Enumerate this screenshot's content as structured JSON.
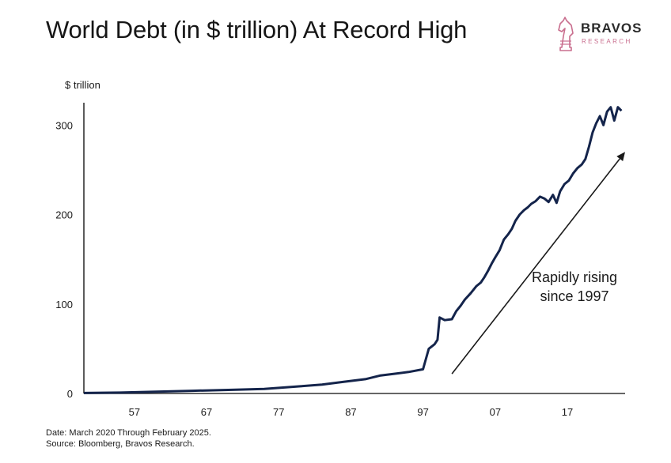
{
  "title": "World Debt (in $ trillion) At Record High",
  "brand": {
    "name": "BRAVOS",
    "sub": "RESEARCH",
    "icon": "chess-knight-icon",
    "color": "#c96e8e"
  },
  "notes": {
    "date": "Date: March 2020 Through February 2025.",
    "source": "Source: Bloomberg, Bravos Research."
  },
  "chart_data": {
    "type": "line",
    "ylabel": "$ trillion",
    "ylim": [
      0,
      325
    ],
    "xlim": [
      1950,
      2025
    ],
    "yticks": [
      0,
      100,
      200,
      300
    ],
    "xticks": [
      {
        "value": 1957,
        "label": "57"
      },
      {
        "value": 1967,
        "label": "67"
      },
      {
        "value": 1977,
        "label": "77"
      },
      {
        "value": 1987,
        "label": "87"
      },
      {
        "value": 1997,
        "label": "97"
      },
      {
        "value": 2007,
        "label": "07"
      },
      {
        "value": 2017,
        "label": "17"
      }
    ],
    "grid": false,
    "line_color": "#14244b",
    "series": [
      {
        "x": [
          1950,
          1955,
          1960,
          1965,
          1970,
          1975,
          1980,
          1983,
          1986,
          1989,
          1991,
          1993,
          1995,
          1997,
          1997.8,
          1998.6,
          1999,
          1999.3,
          2000,
          2001,
          2001.6,
          2002.2,
          2002.8,
          2003.6,
          2004.4,
          2005,
          2005.5,
          2006,
          2006.5,
          2007,
          2007.6,
          2008.2,
          2008.8,
          2009.3,
          2009.8,
          2010.4,
          2011,
          2011.5,
          2012,
          2012.6,
          2013.2,
          2013.8,
          2014.4,
          2015,
          2015.5,
          2016,
          2016.6,
          2017.2,
          2017.8,
          2018.4,
          2019,
          2019.5,
          2020,
          2020.5,
          2021,
          2021.5,
          2022,
          2022.5,
          2023,
          2023.5,
          2024,
          2024.5
        ],
        "y": [
          0.5,
          1,
          2,
          3,
          4,
          5,
          8,
          10,
          13,
          16,
          20,
          22,
          24,
          27,
          50,
          55,
          60,
          85,
          82,
          83,
          92,
          98,
          105,
          112,
          120,
          124,
          130,
          137,
          145,
          152,
          160,
          172,
          178,
          184,
          193,
          200,
          205,
          208,
          212,
          215,
          220,
          218,
          214,
          222,
          213,
          226,
          234,
          238,
          246,
          252,
          256,
          262,
          276,
          292,
          302,
          310,
          300,
          315,
          320,
          305,
          320,
          316
        ]
      }
    ],
    "annotation": {
      "text_lines": [
        "Rapidly rising",
        "since 1997"
      ],
      "arrow_from": [
        2001,
        22
      ],
      "arrow_to": [
        2025,
        270
      ]
    }
  }
}
